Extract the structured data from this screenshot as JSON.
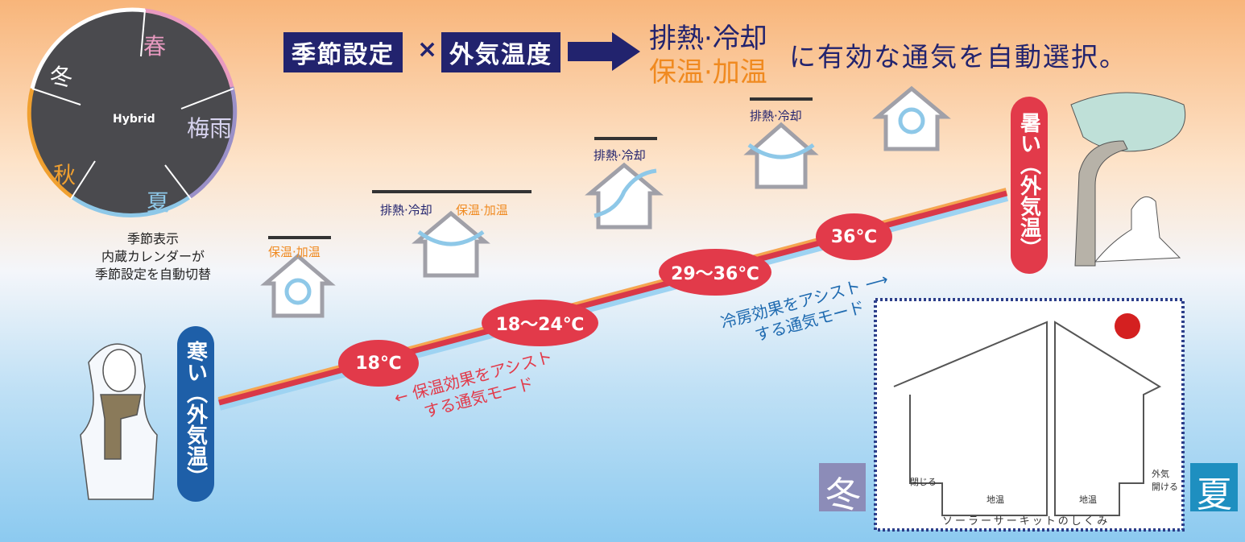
{
  "header": {
    "season_setting": "季節設定",
    "times": "×",
    "outdoor_temp": "外気温度",
    "mode_cool": "排熱·冷却",
    "mode_warm": "保温·加温",
    "tagline": "に有効な通気を自動選択。"
  },
  "calendar": {
    "center": "Hybrid",
    "seasons": [
      "春",
      "梅雨",
      "夏",
      "秋",
      "冬"
    ],
    "caption": [
      "季節表示",
      "内蔵カレンダーが",
      "季節設定を自動切替"
    ]
  },
  "scale": {
    "cold": "寒い（外気温）",
    "hot": "暑い（外気温）",
    "temps": [
      "18℃",
      "18〜24℃",
      "29〜36℃",
      "36℃"
    ],
    "warm_assist": [
      "保温効果をアシスト",
      "する通気モード"
    ],
    "cool_assist": [
      "冷房効果をアシスト",
      "する通気モード"
    ]
  },
  "modes": [
    {
      "labels": [
        "保温·加温"
      ]
    },
    {
      "labels": [
        "排熱·冷却",
        "保温·加温"
      ]
    },
    {
      "labels": [
        "排熱·冷却"
      ]
    },
    {
      "labels": [
        "排熱·冷却"
      ]
    }
  ],
  "inset": {
    "title": "ソーラーサーキットのしくみ",
    "winter": "冬",
    "summer": "夏",
    "labels": [
      "閉じる",
      "地温",
      "地温",
      "外気",
      "開ける"
    ]
  }
}
